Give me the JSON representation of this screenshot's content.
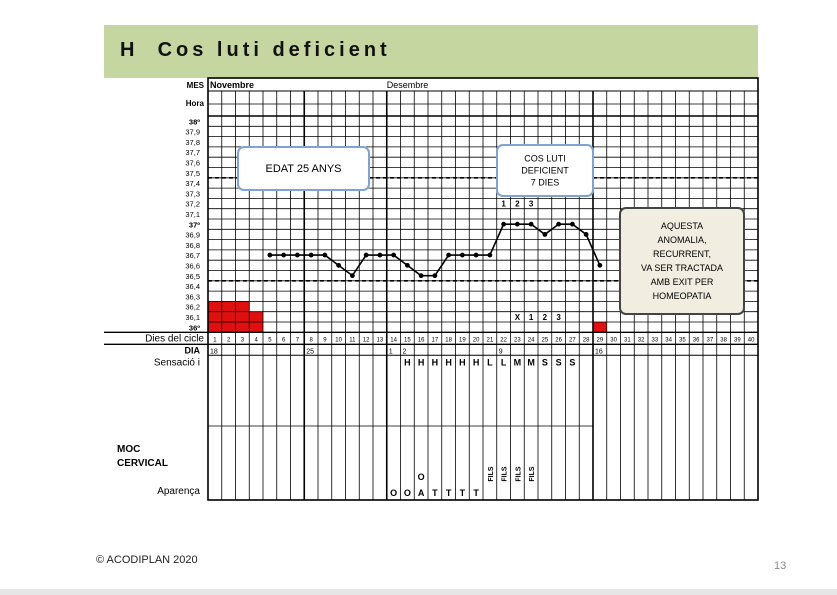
{
  "slide": {
    "title_letter": "H",
    "title": "Cos luti deficient",
    "copyright": "© ACODIPLAN 2020",
    "page_number": "13"
  },
  "chart_data": {
    "type": "line",
    "row_labels": {
      "mes": "MES",
      "hora": "Hora",
      "cycle_days": "Dies del cicle",
      "dia": "DIA",
      "sensacio": "Sensació i",
      "moc": "MOC",
      "cervical": "CERVICAL",
      "aparenca": "Aparença"
    },
    "months": [
      {
        "label": "Novembre",
        "start_day": 1
      },
      {
        "label": "Desembre",
        "start_day": 14
      }
    ],
    "y_tick_labels": [
      "38º",
      "37,9",
      "37,8",
      "37,7",
      "37,6",
      "37,5",
      "37,4",
      "37,3",
      "37,2",
      "37,1",
      "37º",
      "36,9",
      "36,8",
      "36,7",
      "36,6",
      "36,5",
      "36,4",
      "36,3",
      "36,2",
      "36,1",
      "36º"
    ],
    "ylim": [
      36.0,
      38.0
    ],
    "cycle_days": [
      1,
      2,
      3,
      4,
      5,
      6,
      7,
      8,
      9,
      10,
      11,
      12,
      13,
      14,
      15,
      16,
      17,
      18,
      19,
      20,
      21,
      22,
      23,
      24,
      25,
      26,
      27,
      28,
      29,
      30,
      31,
      32,
      33,
      34,
      35,
      36,
      37,
      38,
      39,
      40
    ],
    "dia_labels": [
      {
        "day": 1,
        "text": "18"
      },
      {
        "day": 8,
        "text": "25"
      },
      {
        "day": 14,
        "text": "1"
      },
      {
        "day": 15,
        "text": "2"
      },
      {
        "day": 22,
        "text": "9"
      },
      {
        "day": 29,
        "text": "16"
      }
    ],
    "temperatures": [
      {
        "day": 5,
        "temp": 36.7
      },
      {
        "day": 6,
        "temp": 36.7
      },
      {
        "day": 7,
        "temp": 36.7
      },
      {
        "day": 8,
        "temp": 36.7
      },
      {
        "day": 9,
        "temp": 36.7
      },
      {
        "day": 10,
        "temp": 36.6
      },
      {
        "day": 11,
        "temp": 36.5
      },
      {
        "day": 12,
        "temp": 36.7
      },
      {
        "day": 13,
        "temp": 36.7
      },
      {
        "day": 14,
        "temp": 36.7
      },
      {
        "day": 15,
        "temp": 36.6
      },
      {
        "day": 16,
        "temp": 36.5
      },
      {
        "day": 17,
        "temp": 36.5
      },
      {
        "day": 18,
        "temp": 36.7
      },
      {
        "day": 19,
        "temp": 36.7
      },
      {
        "day": 20,
        "temp": 36.7
      },
      {
        "day": 21,
        "temp": 36.7
      },
      {
        "day": 22,
        "temp": 37.0
      },
      {
        "day": 23,
        "temp": 37.0
      },
      {
        "day": 24,
        "temp": 37.0
      },
      {
        "day": 25,
        "temp": 36.9
      },
      {
        "day": 26,
        "temp": 37.0
      },
      {
        "day": 27,
        "temp": 37.0
      },
      {
        "day": 28,
        "temp": 36.9
      },
      {
        "day": 29,
        "temp": 36.6
      }
    ],
    "period_marks": [
      {
        "day": 1,
        "levels": [
          36.2,
          36.1,
          36.0
        ]
      },
      {
        "day": 2,
        "levels": [
          36.2,
          36.1,
          36.0
        ]
      },
      {
        "day": 3,
        "levels": [
          36.2,
          36.1,
          36.0
        ]
      },
      {
        "day": 4,
        "levels": [
          36.1,
          36.0
        ]
      },
      {
        "day": 29,
        "levels": [
          36.0
        ]
      }
    ],
    "coverline_temps": [
      37.45,
      36.45
    ],
    "upper_count": [
      {
        "day": 22,
        "text": "1",
        "temp": 37.2
      },
      {
        "day": 23,
        "text": "2",
        "temp": 37.2
      },
      {
        "day": 24,
        "text": "3",
        "temp": 37.2
      }
    ],
    "lower_count": [
      {
        "day": 23,
        "text": "X",
        "temp": 36.1
      },
      {
        "day": 24,
        "text": "1",
        "temp": 36.1
      },
      {
        "day": 25,
        "text": "2",
        "temp": 36.1
      },
      {
        "day": 26,
        "text": "3",
        "temp": 36.1
      }
    ],
    "sensacio": [
      {
        "day": 15,
        "text": "H"
      },
      {
        "day": 16,
        "text": "H"
      },
      {
        "day": 17,
        "text": "H"
      },
      {
        "day": 18,
        "text": "H"
      },
      {
        "day": 19,
        "text": "H"
      },
      {
        "day": 20,
        "text": "H"
      },
      {
        "day": 21,
        "text": "L"
      },
      {
        "day": 22,
        "text": "L"
      },
      {
        "day": 23,
        "text": "M"
      },
      {
        "day": 24,
        "text": "M"
      },
      {
        "day": 25,
        "text": "S"
      },
      {
        "day": 26,
        "text": "S"
      },
      {
        "day": 27,
        "text": "S"
      }
    ],
    "aparenca": [
      {
        "day": 14,
        "text": "O"
      },
      {
        "day": 15,
        "text": "O"
      },
      {
        "day": 16,
        "text": "A"
      },
      {
        "day": 17,
        "text": "T"
      },
      {
        "day": 18,
        "text": "T"
      },
      {
        "day": 19,
        "text": "T"
      },
      {
        "day": 20,
        "text": "T"
      }
    ],
    "aparenca_extra": [
      {
        "day": 16,
        "text": "O"
      }
    ],
    "fils": [
      {
        "day": 21,
        "text": "FILS"
      },
      {
        "day": 22,
        "text": "FILS"
      },
      {
        "day": 23,
        "text": "FILS"
      },
      {
        "day": 24,
        "text": "FILS"
      }
    ],
    "annotations": [
      {
        "id": "age",
        "lines": [
          "EDAT  25 ANYS"
        ]
      },
      {
        "id": "luteal",
        "lines": [
          "COS LUTI",
          "DEFICIENT",
          "7 DIES"
        ]
      },
      {
        "id": "treatment",
        "lines": [
          "AQUESTA",
          "ANOMALIA,",
          "RECURRENT,",
          "VA SER TRACTADA",
          "AMB EXIT PER",
          "HOMEOPATIA"
        ]
      }
    ],
    "colors": {
      "grid": "#000000",
      "period": "#e01010",
      "line": "#000000",
      "box_fill": "#ffffff",
      "box_border": "#7fa3d6",
      "treatment_fill": "#f1ede0",
      "title_bar": "#c5d6a1"
    }
  }
}
